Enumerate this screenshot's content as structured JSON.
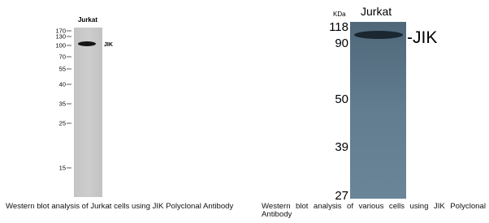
{
  "left_panel": {
    "lane_label": "Jurkat",
    "band_label": "JIK",
    "markers": [
      "170",
      "130",
      "100",
      "70",
      "55",
      "40",
      "35",
      "25",
      "15"
    ],
    "caption": "Western blot analysis of Jurkat cells using JIK Polyclonal Antibody"
  },
  "right_panel": {
    "unit_label": "KDa",
    "lane_label": "Jurkat",
    "band_label": "-JIK",
    "markers": [
      "118",
      "90",
      "50",
      "39",
      "27"
    ],
    "caption": "Western blot analysis of various cells using JIK Polyclonal Antibody"
  }
}
